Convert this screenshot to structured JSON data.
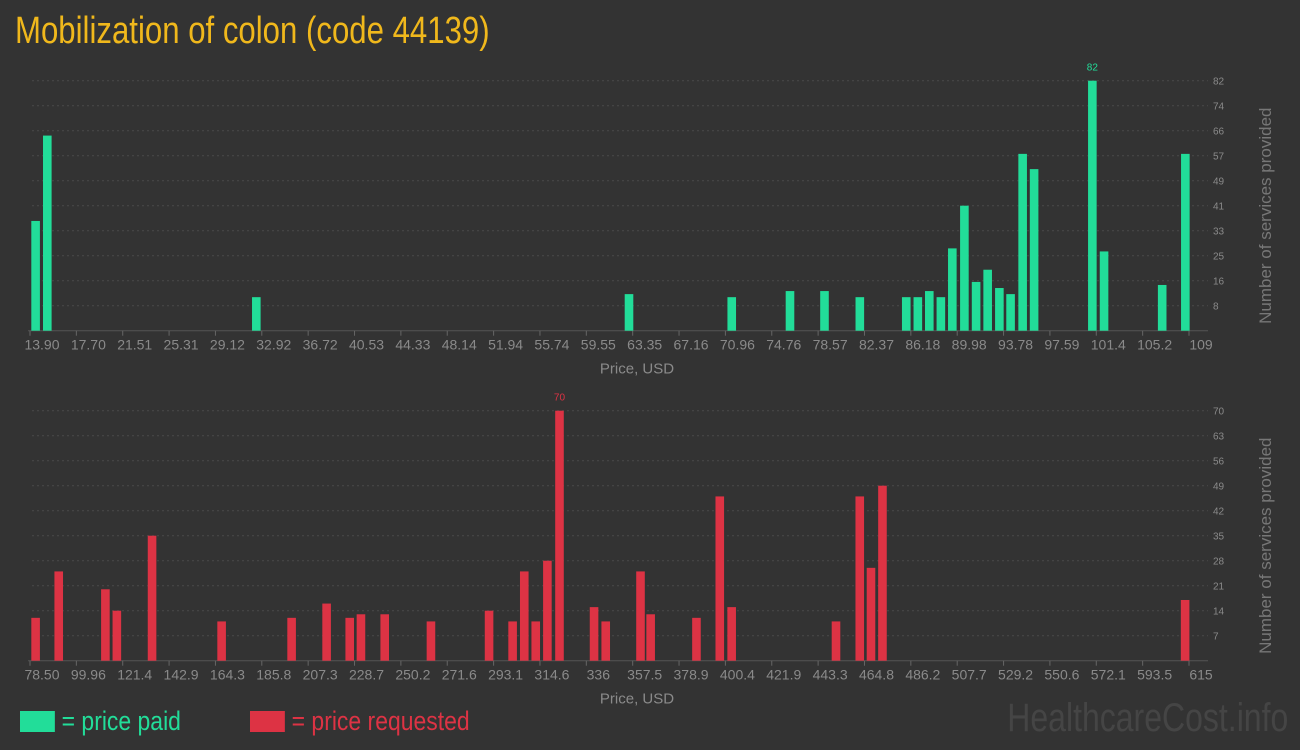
{
  "title": "Mobilization of colon (code 44139)",
  "colors": {
    "background": "#333333",
    "paid": "#22dd99",
    "requested": "#dd3344",
    "title": "#f0b81c",
    "grid": "#4a4a4a"
  },
  "legend": {
    "paid_label": "= price paid",
    "requested_label": "= price requested"
  },
  "watermark": "HealthcareCost.info",
  "chart_data": [
    {
      "type": "bar",
      "series": [
        {
          "name": "price paid",
          "color": "#22dd99"
        }
      ],
      "xlabel": "Price, USD",
      "ylabel": "Number of services provided",
      "xlim": [
        13.9,
        109
      ],
      "ylim": [
        0,
        82
      ],
      "grid": true,
      "x_tick_labels": [
        "13.90",
        "17.70",
        "21.51",
        "25.31",
        "29.12",
        "32.92",
        "36.72",
        "40.53",
        "44.33",
        "48.14",
        "51.94",
        "55.74",
        "59.55",
        "63.35",
        "67.16",
        "70.96",
        "74.76",
        "78.57",
        "82.37",
        "86.18",
        "89.98",
        "93.78",
        "97.59",
        "101.4",
        "105.2",
        "109"
      ],
      "y_tick_labels": [
        "8",
        "16",
        "25",
        "33",
        "41",
        "49",
        "57",
        "66",
        "74",
        "82"
      ],
      "peak_label": "82",
      "x": [
        14.36,
        15.32,
        32.47,
        63.05,
        71.48,
        76.26,
        79.09,
        81.99,
        85.8,
        86.75,
        87.69,
        88.64,
        89.58,
        90.57,
        91.53,
        92.48,
        93.44,
        94.36,
        95.35,
        96.29,
        101.07,
        102.03,
        106.8,
        108.7
      ],
      "values": [
        36,
        64,
        11,
        12,
        11,
        13,
        13,
        11,
        11,
        11,
        13,
        11,
        27,
        41,
        16,
        20,
        14,
        12,
        58,
        53,
        82,
        26,
        15,
        58
      ]
    },
    {
      "type": "bar",
      "series": [
        {
          "name": "price requested",
          "color": "#dd3344"
        }
      ],
      "xlabel": "Price, USD",
      "ylabel": "Number of services provided",
      "xlim": [
        78.5,
        615
      ],
      "ylim": [
        0,
        70
      ],
      "grid": true,
      "x_tick_labels": [
        "78.50",
        "99.96",
        "121.4",
        "142.9",
        "164.3",
        "185.8",
        "207.3",
        "228.7",
        "250.2",
        "271.6",
        "293.1",
        "314.6",
        "336",
        "357.5",
        "378.9",
        "400.4",
        "421.9",
        "443.3",
        "464.8",
        "486.2",
        "507.7",
        "529.2",
        "550.6",
        "572.1",
        "593.5",
        "615"
      ],
      "y_tick_labels": [
        "7",
        "14",
        "21",
        "28",
        "35",
        "42",
        "49",
        "56",
        "63",
        "70"
      ],
      "peak_label": "70",
      "x": [
        81.1,
        91.8,
        113.4,
        118.7,
        135.0,
        167.2,
        199.6,
        215.8,
        226.5,
        231.7,
        242.7,
        264.1,
        291.0,
        301.9,
        307.3,
        312.6,
        318.0,
        323.6,
        339.6,
        345.0,
        361.1,
        365.8,
        387.0,
        397.8,
        403.3,
        451.6,
        462.6,
        467.8,
        473.1,
        613.2
      ],
      "values": [
        12,
        25,
        20,
        14,
        35,
        11,
        12,
        16,
        12,
        13,
        13,
        11,
        14,
        11,
        25,
        11,
        28,
        70,
        15,
        11,
        25,
        13,
        12,
        46,
        15,
        11,
        46,
        26,
        49,
        17
      ]
    }
  ]
}
